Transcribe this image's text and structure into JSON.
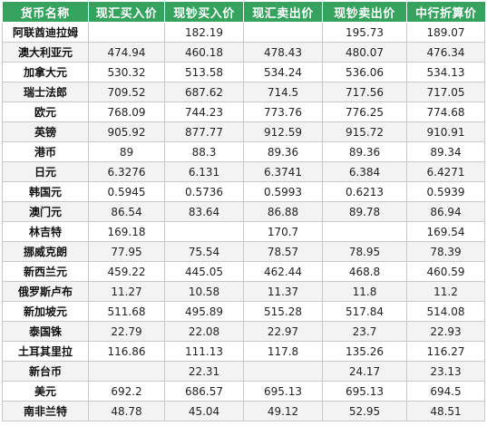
{
  "table": {
    "headers": [
      "货币名称",
      "现汇买入价",
      "现钞买入价",
      "现汇卖出价",
      "现钞卖出价",
      "中行折算价"
    ],
    "rows": [
      [
        "阿联酋迪拉姆",
        "",
        "182.19",
        "",
        "195.73",
        "189.07"
      ],
      [
        "澳大利亚元",
        "474.94",
        "460.18",
        "478.43",
        "480.07",
        "476.34"
      ],
      [
        "加拿大元",
        "530.32",
        "513.58",
        "534.24",
        "536.06",
        "534.13"
      ],
      [
        "瑞士法郎",
        "709.52",
        "687.62",
        "714.5",
        "717.56",
        "717.05"
      ],
      [
        "欧元",
        "768.09",
        "744.23",
        "773.76",
        "776.25",
        "774.68"
      ],
      [
        "英镑",
        "905.92",
        "877.77",
        "912.59",
        "915.72",
        "910.91"
      ],
      [
        "港币",
        "89",
        "88.3",
        "89.36",
        "89.36",
        "89.34"
      ],
      [
        "日元",
        "6.3276",
        "6.131",
        "6.3741",
        "6.384",
        "6.4271"
      ],
      [
        "韩国元",
        "0.5945",
        "0.5736",
        "0.5993",
        "0.6213",
        "0.5939"
      ],
      [
        "澳门元",
        "86.54",
        "83.64",
        "86.88",
        "89.78",
        "86.94"
      ],
      [
        "林吉特",
        "169.18",
        "",
        "170.7",
        "",
        "169.54"
      ],
      [
        "挪威克朗",
        "77.95",
        "75.54",
        "78.57",
        "78.95",
        "78.39"
      ],
      [
        "新西兰元",
        "459.22",
        "445.05",
        "462.44",
        "468.8",
        "460.59"
      ],
      [
        "俄罗斯卢布",
        "11.27",
        "10.58",
        "11.37",
        "11.8",
        "11.2"
      ],
      [
        "新加坡元",
        "511.68",
        "495.89",
        "515.28",
        "517.84",
        "514.08"
      ],
      [
        "泰国铢",
        "22.79",
        "22.08",
        "22.97",
        "23.7",
        "22.93"
      ],
      [
        "土耳其里拉",
        "116.86",
        "111.13",
        "117.8",
        "135.26",
        "116.27"
      ],
      [
        "新台币",
        "",
        "22.31",
        "",
        "24.17",
        "23.13"
      ],
      [
        "美元",
        "692.2",
        "686.57",
        "695.13",
        "695.13",
        "694.5"
      ],
      [
        "南非兰特",
        "48.78",
        "45.04",
        "49.12",
        "52.95",
        "48.51"
      ]
    ]
  },
  "colors": {
    "header_bg": "#35a35e",
    "header_text": "#ffffff",
    "alt_row_bg": "#f3f3f3",
    "grid_line": "#c8c8c8"
  }
}
